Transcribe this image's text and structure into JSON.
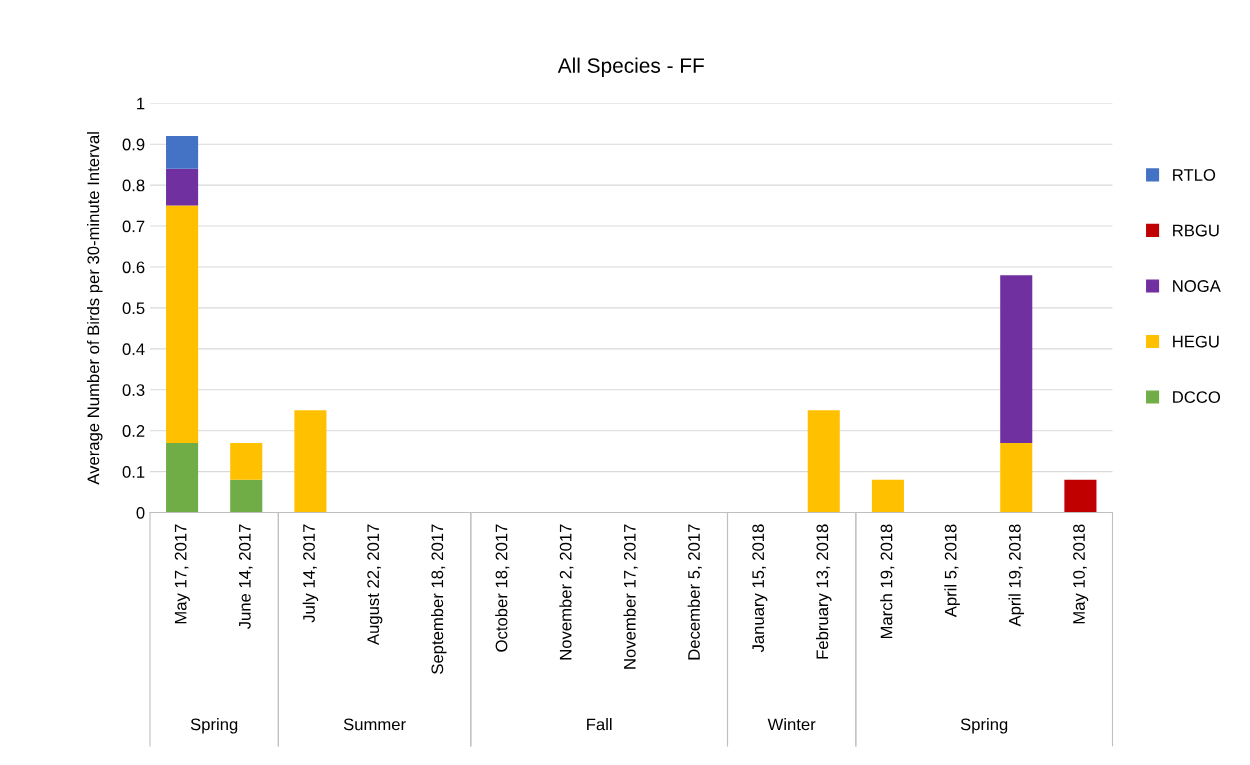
{
  "chart_data": {
    "type": "bar",
    "title": "All Species - FF",
    "ylabel": "Average Number of Birds per 30-minute Interval",
    "stacked": true,
    "categories": [
      "May 17, 2017",
      "June 14, 2017",
      "July 14, 2017",
      "August 22, 2017",
      "September 18, 2017",
      "October 18, 2017",
      "November 2, 2017",
      "November 17, 2017",
      "December 5, 2017",
      "January 15, 2018",
      "February 13, 2018",
      "March 19, 2018",
      "April 5, 2018",
      "April 19, 2018",
      "May 10, 2018"
    ],
    "series": [
      {
        "name": "DCCO",
        "color": "#70ad47",
        "values": [
          0.17,
          0.08,
          0,
          0,
          0,
          0,
          0,
          0,
          0,
          0,
          0,
          0,
          0,
          0,
          0
        ]
      },
      {
        "name": "HEGU",
        "color": "#ffc000",
        "values": [
          0.58,
          0.09,
          0.25,
          0,
          0,
          0,
          0,
          0,
          0,
          0,
          0.25,
          0.08,
          0,
          0.17,
          0
        ]
      },
      {
        "name": "NOGA",
        "color": "#7030a0",
        "values": [
          0.09,
          0,
          0,
          0,
          0,
          0,
          0,
          0,
          0,
          0,
          0,
          0,
          0,
          0.41,
          0
        ]
      },
      {
        "name": "RBGU",
        "color": "#c00000",
        "values": [
          0,
          0,
          0,
          0,
          0,
          0,
          0,
          0,
          0,
          0,
          0,
          0,
          0,
          0,
          0.08
        ]
      },
      {
        "name": "RTLO",
        "color": "#4472c4",
        "values": [
          0.08,
          0,
          0,
          0,
          0,
          0,
          0,
          0,
          0,
          0,
          0,
          0,
          0,
          0,
          0
        ]
      }
    ],
    "annotations": [
      "Spring",
      "Summer",
      "Fall",
      "Winter",
      "Spring"
    ],
    "ylim": [
      0,
      1
    ],
    "yticks": [
      0,
      0.1,
      0.2,
      0.3,
      0.4,
      0.5,
      0.6,
      0.7,
      0.8,
      0.9,
      1
    ],
    "grid": "y",
    "legend": "right"
  }
}
